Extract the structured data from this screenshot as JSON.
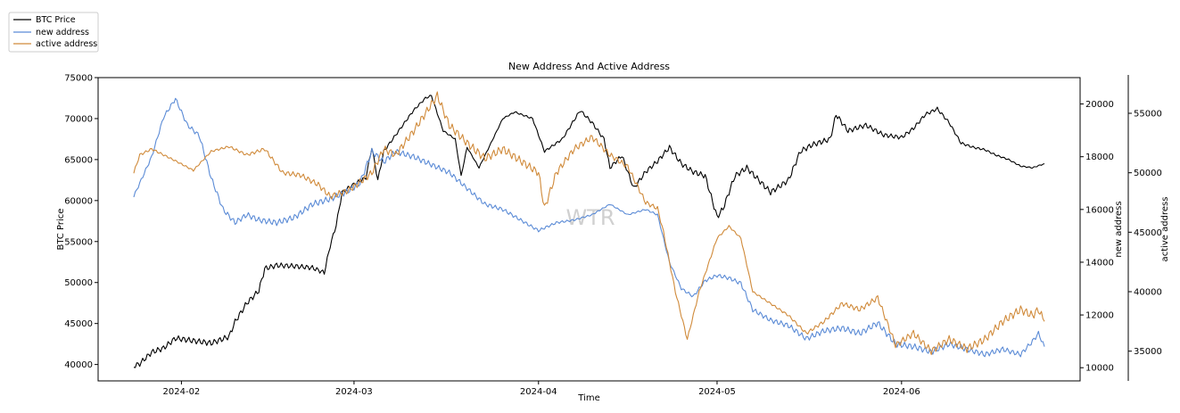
{
  "chart_data": {
    "type": "line",
    "title": "New Address And Active Address",
    "xlabel": "Time",
    "ylabel_left": "BTC Price",
    "ylabel_right1": "new address",
    "ylabel_right2": "active address",
    "watermark": "WTR",
    "x_ticks": [
      "2024-02",
      "2024-03",
      "2024-04",
      "2024-05",
      "2024-06"
    ],
    "x_tick_dates": [
      "2024-02-01",
      "2024-03-01",
      "2024-04-01",
      "2024-05-01",
      "2024-06-01"
    ],
    "xlim": [
      "2024-01-18",
      "2024-07-01"
    ],
    "left_axis": {
      "ylim": [
        38000,
        75000
      ],
      "ticks": [
        40000,
        45000,
        50000,
        55000,
        60000,
        65000,
        70000,
        75000
      ]
    },
    "right_axis_1": {
      "ylim": [
        9500,
        21000
      ],
      "ticks": [
        10000,
        12000,
        14000,
        16000,
        18000,
        20000
      ]
    },
    "right_axis_2": {
      "ylim": [
        32500,
        58000
      ],
      "ticks": [
        35000,
        40000,
        45000,
        50000,
        55000
      ]
    },
    "legend_position": "top-left outside",
    "grid": false,
    "series": [
      {
        "name": "BTC Price",
        "axis": "left",
        "color": "#000000",
        "points": [
          [
            "2024-01-24",
            39800
          ],
          [
            "2024-01-25",
            40100
          ],
          [
            "2024-01-27",
            41500
          ],
          [
            "2024-01-29",
            42000
          ],
          [
            "2024-01-31",
            43200
          ],
          [
            "2024-02-03",
            42900
          ],
          [
            "2024-02-06",
            42600
          ],
          [
            "2024-02-09",
            43400
          ],
          [
            "2024-02-10",
            45200
          ],
          [
            "2024-02-12",
            47500
          ],
          [
            "2024-02-14",
            49000
          ],
          [
            "2024-02-15",
            51700
          ],
          [
            "2024-02-17",
            52100
          ],
          [
            "2024-02-20",
            52000
          ],
          [
            "2024-02-23",
            51800
          ],
          [
            "2024-02-25",
            51200
          ],
          [
            "2024-02-26",
            54500
          ],
          [
            "2024-02-27",
            57000
          ],
          [
            "2024-02-28",
            61000
          ],
          [
            "2024-03-01",
            62000
          ],
          [
            "2024-03-03",
            62800
          ],
          [
            "2024-03-04",
            66500
          ],
          [
            "2024-03-05",
            62500
          ],
          [
            "2024-03-06",
            66000
          ],
          [
            "2024-03-08",
            68000
          ],
          [
            "2024-03-11",
            71000
          ],
          [
            "2024-03-13",
            72500
          ],
          [
            "2024-03-14",
            72800
          ],
          [
            "2024-03-16",
            68500
          ],
          [
            "2024-03-18",
            67500
          ],
          [
            "2024-03-19",
            63000
          ],
          [
            "2024-03-20",
            66500
          ],
          [
            "2024-03-22",
            64000
          ],
          [
            "2024-03-24",
            67000
          ],
          [
            "2024-03-26",
            70000
          ],
          [
            "2024-03-28",
            70800
          ],
          [
            "2024-03-31",
            70000
          ],
          [
            "2024-04-02",
            66000
          ],
          [
            "2024-04-05",
            67500
          ],
          [
            "2024-04-08",
            71000
          ],
          [
            "2024-04-10",
            69500
          ],
          [
            "2024-04-12",
            67500
          ],
          [
            "2024-04-13",
            64000
          ],
          [
            "2024-04-15",
            65500
          ],
          [
            "2024-04-17",
            61500
          ],
          [
            "2024-04-19",
            63500
          ],
          [
            "2024-04-21",
            64800
          ],
          [
            "2024-04-23",
            66500
          ],
          [
            "2024-04-25",
            64500
          ],
          [
            "2024-04-27",
            63500
          ],
          [
            "2024-04-29",
            63000
          ],
          [
            "2024-05-01",
            58000
          ],
          [
            "2024-05-02",
            59000
          ],
          [
            "2024-05-04",
            63000
          ],
          [
            "2024-05-06",
            64000
          ],
          [
            "2024-05-08",
            62500
          ],
          [
            "2024-05-10",
            61000
          ],
          [
            "2024-05-13",
            62500
          ],
          [
            "2024-05-15",
            66000
          ],
          [
            "2024-05-17",
            66800
          ],
          [
            "2024-05-20",
            67500
          ],
          [
            "2024-05-21",
            70500
          ],
          [
            "2024-05-23",
            68500
          ],
          [
            "2024-05-26",
            69200
          ],
          [
            "2024-05-29",
            68000
          ],
          [
            "2024-06-01",
            67700
          ],
          [
            "2024-06-03",
            68800
          ],
          [
            "2024-06-05",
            70500
          ],
          [
            "2024-06-07",
            71200
          ],
          [
            "2024-06-09",
            69500
          ],
          [
            "2024-06-11",
            67000
          ],
          [
            "2024-06-13",
            66500
          ],
          [
            "2024-06-15",
            66200
          ],
          [
            "2024-06-17",
            65500
          ],
          [
            "2024-06-19",
            65000
          ],
          [
            "2024-06-21",
            64200
          ],
          [
            "2024-06-23",
            64000
          ],
          [
            "2024-06-25",
            64500
          ]
        ]
      },
      {
        "name": "new address",
        "axis": "right1",
        "color": "#5b8bd6",
        "points": [
          [
            "2024-01-24",
            16500
          ],
          [
            "2024-01-25",
            17000
          ],
          [
            "2024-01-27",
            18000
          ],
          [
            "2024-01-29",
            19500
          ],
          [
            "2024-01-31",
            20200
          ],
          [
            "2024-02-02",
            19200
          ],
          [
            "2024-02-04",
            18800
          ],
          [
            "2024-02-06",
            17200
          ],
          [
            "2024-02-08",
            16000
          ],
          [
            "2024-02-10",
            15500
          ],
          [
            "2024-02-12",
            15800
          ],
          [
            "2024-02-14",
            15600
          ],
          [
            "2024-02-17",
            15500
          ],
          [
            "2024-02-20",
            15700
          ],
          [
            "2024-02-23",
            16200
          ],
          [
            "2024-02-26",
            16400
          ],
          [
            "2024-02-29",
            16700
          ],
          [
            "2024-03-02",
            17000
          ],
          [
            "2024-03-04",
            18200
          ],
          [
            "2024-03-06",
            17800
          ],
          [
            "2024-03-08",
            18200
          ],
          [
            "2024-03-11",
            18000
          ],
          [
            "2024-03-14",
            17700
          ],
          [
            "2024-03-17",
            17400
          ],
          [
            "2024-03-20",
            16800
          ],
          [
            "2024-03-23",
            16200
          ],
          [
            "2024-03-26",
            16000
          ],
          [
            "2024-03-29",
            15600
          ],
          [
            "2024-04-01",
            15200
          ],
          [
            "2024-04-04",
            15500
          ],
          [
            "2024-04-07",
            15600
          ],
          [
            "2024-04-10",
            15800
          ],
          [
            "2024-04-13",
            16200
          ],
          [
            "2024-04-16",
            15800
          ],
          [
            "2024-04-19",
            16000
          ],
          [
            "2024-04-21",
            15800
          ],
          [
            "2024-04-23",
            14000
          ],
          [
            "2024-04-25",
            13000
          ],
          [
            "2024-04-27",
            12700
          ],
          [
            "2024-04-29",
            13300
          ],
          [
            "2024-05-01",
            13500
          ],
          [
            "2024-05-03",
            13400
          ],
          [
            "2024-05-05",
            13200
          ],
          [
            "2024-05-07",
            12200
          ],
          [
            "2024-05-10",
            11800
          ],
          [
            "2024-05-13",
            11600
          ],
          [
            "2024-05-16",
            11100
          ],
          [
            "2024-05-19",
            11400
          ],
          [
            "2024-05-22",
            11500
          ],
          [
            "2024-05-25",
            11300
          ],
          [
            "2024-05-28",
            11700
          ],
          [
            "2024-05-31",
            10900
          ],
          [
            "2024-06-03",
            10800
          ],
          [
            "2024-06-06",
            10600
          ],
          [
            "2024-06-09",
            10900
          ],
          [
            "2024-06-12",
            10700
          ],
          [
            "2024-06-15",
            10500
          ],
          [
            "2024-06-18",
            10700
          ],
          [
            "2024-06-21",
            10500
          ],
          [
            "2024-06-23",
            11000
          ],
          [
            "2024-06-24",
            11300
          ],
          [
            "2024-06-25",
            10800
          ]
        ]
      },
      {
        "name": "active address",
        "axis": "right2",
        "color": "#d08a3a",
        "points": [
          [
            "2024-01-24",
            50000
          ],
          [
            "2024-01-25",
            51500
          ],
          [
            "2024-01-27",
            52000
          ],
          [
            "2024-01-29",
            51500
          ],
          [
            "2024-01-31",
            51000
          ],
          [
            "2024-02-03",
            50200
          ],
          [
            "2024-02-06",
            51800
          ],
          [
            "2024-02-09",
            52200
          ],
          [
            "2024-02-12",
            51500
          ],
          [
            "2024-02-15",
            52000
          ],
          [
            "2024-02-18",
            50000
          ],
          [
            "2024-02-21",
            49800
          ],
          [
            "2024-02-24",
            49000
          ],
          [
            "2024-02-26",
            48000
          ],
          [
            "2024-02-29",
            48500
          ],
          [
            "2024-03-02",
            49200
          ],
          [
            "2024-03-04",
            50000
          ],
          [
            "2024-03-06",
            52000
          ],
          [
            "2024-03-08",
            51500
          ],
          [
            "2024-03-11",
            53500
          ],
          [
            "2024-03-13",
            55000
          ],
          [
            "2024-03-15",
            56500
          ],
          [
            "2024-03-17",
            54000
          ],
          [
            "2024-03-20",
            52500
          ],
          [
            "2024-03-23",
            51200
          ],
          [
            "2024-03-26",
            52000
          ],
          [
            "2024-03-29",
            51000
          ],
          [
            "2024-04-01",
            50000
          ],
          [
            "2024-04-02",
            47000
          ],
          [
            "2024-04-04",
            50000
          ],
          [
            "2024-04-07",
            52000
          ],
          [
            "2024-04-10",
            53000
          ],
          [
            "2024-04-13",
            51500
          ],
          [
            "2024-04-16",
            50500
          ],
          [
            "2024-04-19",
            47500
          ],
          [
            "2024-04-21",
            47000
          ],
          [
            "2024-04-22",
            45000
          ],
          [
            "2024-04-24",
            40000
          ],
          [
            "2024-04-26",
            36000
          ],
          [
            "2024-04-28",
            40000
          ],
          [
            "2024-05-01",
            44500
          ],
          [
            "2024-05-03",
            45500
          ],
          [
            "2024-05-05",
            44500
          ],
          [
            "2024-05-07",
            40000
          ],
          [
            "2024-05-10",
            39000
          ],
          [
            "2024-05-13",
            38000
          ],
          [
            "2024-05-16",
            36500
          ],
          [
            "2024-05-19",
            37500
          ],
          [
            "2024-05-22",
            39000
          ],
          [
            "2024-05-25",
            38500
          ],
          [
            "2024-05-28",
            39500
          ],
          [
            "2024-05-31",
            35500
          ],
          [
            "2024-06-03",
            36500
          ],
          [
            "2024-06-06",
            35000
          ],
          [
            "2024-06-09",
            36000
          ],
          [
            "2024-06-12",
            35200
          ],
          [
            "2024-06-15",
            36000
          ],
          [
            "2024-06-18",
            37500
          ],
          [
            "2024-06-21",
            38500
          ],
          [
            "2024-06-23",
            38000
          ],
          [
            "2024-06-24",
            38500
          ],
          [
            "2024-06-25",
            37500
          ]
        ]
      }
    ]
  }
}
